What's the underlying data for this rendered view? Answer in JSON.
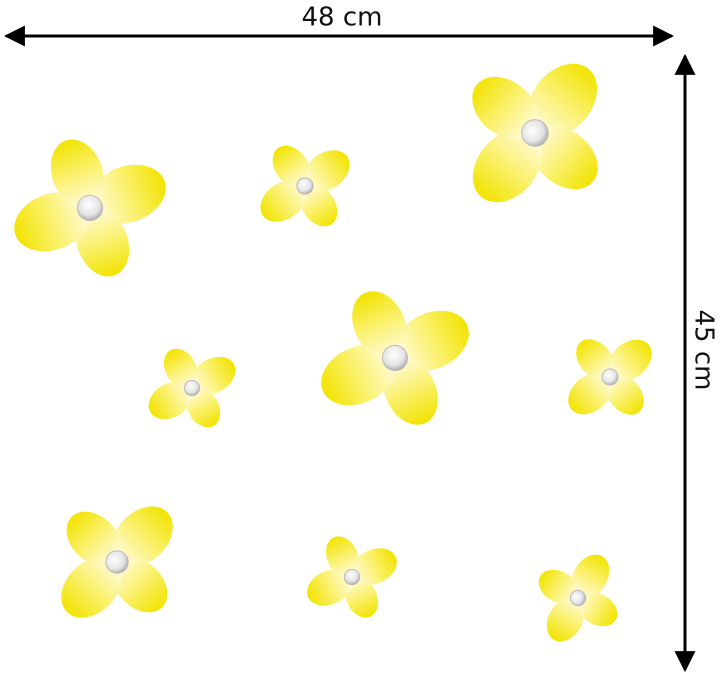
{
  "dimensions": {
    "width": "48 cm",
    "height": "45 cm"
  }
}
